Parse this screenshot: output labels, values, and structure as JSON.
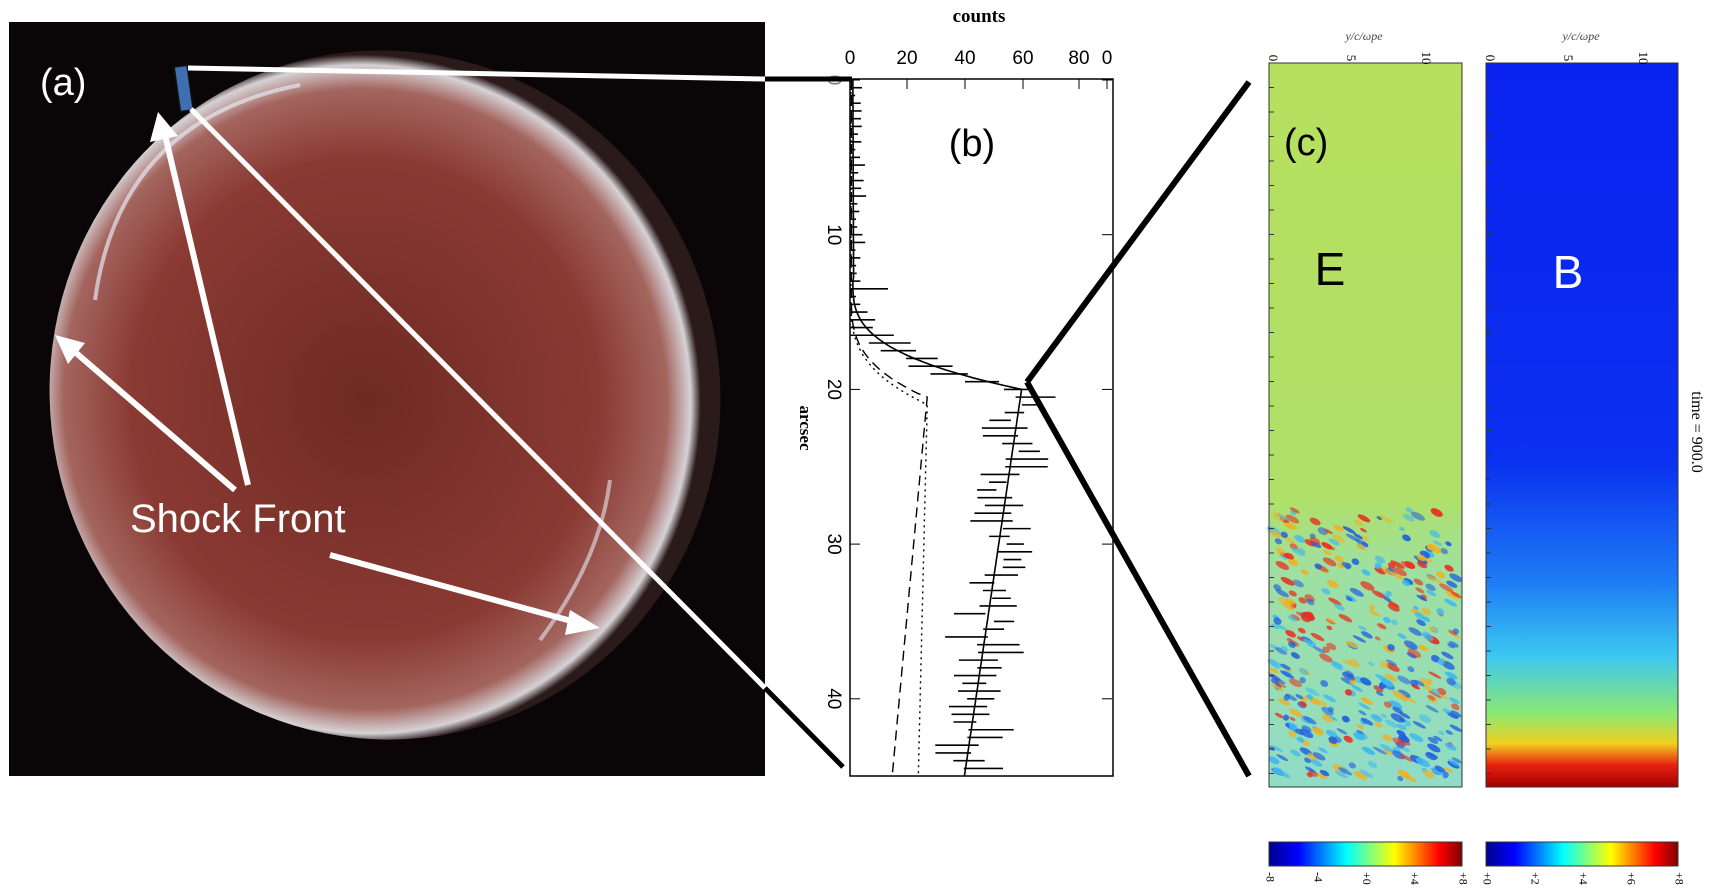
{
  "panel_a": {
    "label": "(a)",
    "annotation": "Shock Front"
  },
  "panel_b": {
    "label": "(b)",
    "x_axis_title": "counts",
    "x_ticks": [
      "0",
      "20",
      "40",
      "60",
      "80",
      "0"
    ],
    "y_axis_title": "arcsec",
    "y_ticks": [
      "0",
      "10",
      "20",
      "30",
      "40"
    ]
  },
  "panel_c": {
    "label": "(c)",
    "time_label": "time = 900.0",
    "maps": [
      {
        "label": "E",
        "axis_title": "y/c/ωpe",
        "x_ticks": [
          "0",
          "5",
          "10"
        ],
        "colorbar_ticks": [
          "-8",
          "-4",
          "+0",
          "+4",
          "+8"
        ]
      },
      {
        "label": "B",
        "axis_title": "y/c/ωpe",
        "x_ticks": [
          "0",
          "5",
          "10"
        ],
        "colorbar_ticks": [
          "+0",
          "+2",
          "+4",
          "+6",
          "+8"
        ]
      }
    ]
  }
}
